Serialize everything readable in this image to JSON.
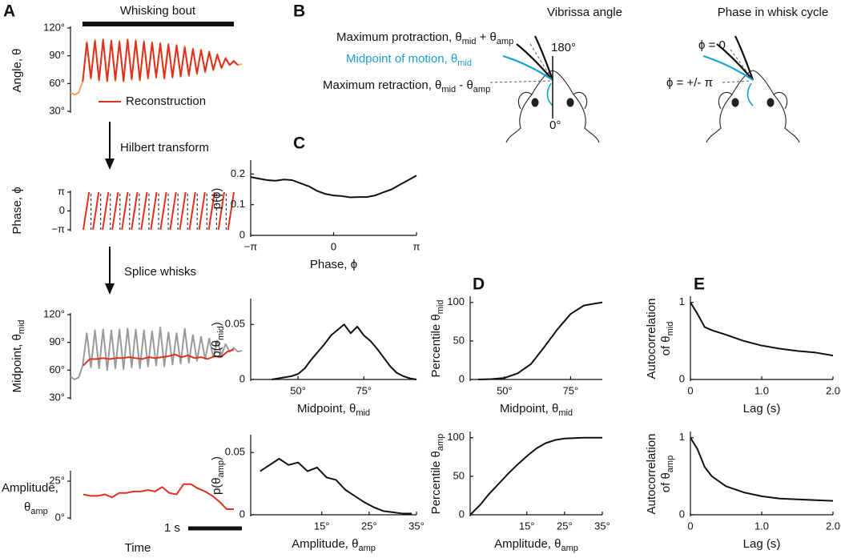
{
  "panel_labels": [
    "A",
    "B",
    "C",
    "D",
    "E"
  ],
  "annotations": {
    "whisking_bout": "Whisking bout",
    "hilbert_transform": "Hilbert transform",
    "splice_whisks": "Splice whisks",
    "scale_bar": "1 s",
    "time_label": "Time"
  },
  "diagram": {
    "title_left": "Vibrissa angle",
    "title_right": "Phase in whisk cycle",
    "max_protraction": [
      "Maximum protraction, θ",
      "mid",
      " + θ",
      "amp"
    ],
    "midpoint": [
      "Midpoint of motion, θ",
      "mid"
    ],
    "max_retraction": [
      "Maximum retraction, θ",
      "mid",
      " - θ",
      "amp"
    ],
    "angle_top": "180°",
    "angle_bottom": "0°",
    "phase_zero": "ϕ = 0",
    "phase_pi": "ϕ = +/- π",
    "midpoint_color": "#1a9fd6"
  },
  "chart_data": [
    {
      "type": "line",
      "ylabel": [
        [
          "Angle, θ"
        ]
      ],
      "ylim": [
        30,
        120
      ],
      "yticks": [
        {
          "value": 120,
          "label": "120°"
        },
        {
          "value": 90,
          "label": "90°"
        },
        {
          "value": 60,
          "label": "60°"
        },
        {
          "value": 30,
          "label": "30°"
        }
      ],
      "legend": "lower center",
      "series": [
        {
          "color": "#f0a35e",
          "values": [
            50,
            48,
            50,
            62,
            105,
            65,
            107,
            63,
            108,
            62,
            107,
            63,
            106,
            62,
            108,
            64,
            107,
            63,
            106,
            65,
            105,
            66,
            104,
            65,
            103,
            66,
            102,
            67,
            100,
            68,
            98,
            70,
            97,
            72,
            95,
            74,
            92,
            76,
            88,
            80,
            85,
            80,
            81
          ]
        },
        {
          "name": "Reconstruction",
          "color": "#e0301e",
          "values": [
            null,
            null,
            null,
            62,
            104,
            66,
            106,
            64,
            107,
            63,
            106,
            64,
            105,
            63,
            107,
            65,
            106,
            64,
            105,
            66,
            104,
            67,
            103,
            66,
            102,
            67,
            101,
            68,
            99,
            69,
            97,
            71,
            96,
            73,
            94,
            75,
            91,
            77,
            87,
            80,
            84,
            80,
            null
          ]
        }
      ]
    },
    {
      "type": "line",
      "ylabel": [
        [
          "Phase, ϕ"
        ]
      ],
      "ylim": [
        -3.1416,
        3.1416
      ],
      "yticks": [
        {
          "value": 3.1416,
          "label": "π"
        },
        0,
        {
          "value": -3.1416,
          "label": "−π"
        }
      ],
      "series": [
        {
          "color": "#e0301e",
          "values": [
            -3.1416,
            -1.0472,
            1.0472,
            3.1416,
            null,
            -3.1416,
            -1.0472,
            1.0472,
            3.1416,
            null,
            -3.1416,
            -1.0472,
            1.0472,
            3.1416,
            null,
            -3.1416,
            -1.0472,
            1.0472,
            3.1416,
            null,
            -3.1416,
            -1.0472,
            1.0472,
            3.1416,
            null,
            -3.1416,
            -1.0472,
            1.0472,
            3.1416,
            null,
            -3.1416,
            -1.0472,
            1.0472,
            3.1416,
            null,
            -3.1416,
            -1.0472,
            1.0472,
            3.1416,
            null,
            -3.1416,
            -1.0472,
            1.0472,
            3.1416,
            null,
            -3.1416,
            -1.0472,
            1.0472,
            3.1416,
            null,
            -3.1416,
            -1.0472,
            1.0472,
            3.1416,
            null,
            -3.1416,
            -1.0472,
            1.0472,
            3.1416,
            null,
            -3.1416,
            -1.0472,
            1.0472,
            3.1416,
            null,
            -3.1416,
            -1.0472,
            1.0472,
            3.1416,
            null,
            -3.1416,
            -1.0472,
            1.0472,
            3.1416,
            null,
            -3.1416,
            -1.0472,
            1.0472,
            3.1416
          ]
        }
      ]
    },
    {
      "type": "line",
      "ylabel": [
        [
          "Midpoint, θ",
          "mid"
        ]
      ],
      "ylim": [
        30,
        120
      ],
      "yticks": [
        {
          "value": 120,
          "label": "120°"
        },
        {
          "value": 90,
          "label": "90°"
        },
        {
          "value": 60,
          "label": "60°"
        },
        {
          "value": 30,
          "label": "30°"
        }
      ],
      "series": [
        {
          "color": "#9a9a9a",
          "values": [
            53,
            50,
            52,
            65,
            100,
            63,
            103,
            62,
            104,
            60,
            103,
            62,
            104,
            61,
            105,
            63,
            104,
            62,
            103,
            64,
            102,
            65,
            106,
            64,
            101,
            66,
            100,
            67,
            105,
            68,
            98,
            70,
            96,
            72,
            94,
            74,
            92,
            76,
            88,
            80,
            84,
            80,
            81
          ]
        },
        {
          "color": "#e0301e",
          "values": [
            65,
            72,
            72,
            73,
            72,
            73,
            73,
            74,
            73,
            72,
            74,
            73,
            74,
            75,
            77,
            74,
            76,
            73,
            74,
            72,
            75,
            74,
            80,
            82
          ]
        }
      ]
    },
    {
      "type": "line",
      "ylabel": [
        [
          "Amplitude,"
        ],
        [
          "θ",
          "amp"
        ]
      ],
      "ylim": [
        0,
        31
      ],
      "yticks": [
        {
          "value": 25,
          "label": "25°"
        },
        {
          "value": 0,
          "label": "0°"
        }
      ],
      "series": [
        {
          "color": "#e0301e",
          "values": [
            16,
            15,
            15,
            16,
            14,
            17,
            17,
            18,
            18,
            19,
            18,
            21,
            17,
            16,
            23,
            23,
            20,
            18,
            15,
            11,
            6,
            6
          ]
        }
      ]
    },
    {
      "type": "line",
      "ylabel": [
        [
          "p(ϕ)"
        ]
      ],
      "xlabel": [
        "Phase, ϕ"
      ],
      "xlim": [
        -3.1416,
        3.1416
      ],
      "ylim": [
        0,
        0.24
      ],
      "xticks": [
        {
          "value": -3.1416,
          "label": "−π"
        },
        0,
        {
          "value": 3.1416,
          "label": "π"
        }
      ],
      "yticks": [
        0.2,
        0.1,
        0
      ],
      "x": [
        -3.14,
        -2.83,
        -2.51,
        -2.2,
        -1.88,
        -1.57,
        -1.26,
        -0.94,
        -0.63,
        -0.31,
        0,
        0.31,
        0.63,
        0.94,
        1.26,
        1.57,
        1.88,
        2.2,
        2.51,
        2.83,
        3.14
      ],
      "series": [
        {
          "color": "#111111",
          "values": [
            0.19,
            0.185,
            0.18,
            0.178,
            0.182,
            0.18,
            0.17,
            0.16,
            0.145,
            0.135,
            0.13,
            0.128,
            0.124,
            0.125,
            0.125,
            0.13,
            0.14,
            0.15,
            0.165,
            0.18,
            0.195
          ]
        }
      ]
    },
    {
      "type": "line",
      "ylabel": [
        [
          "p(θ",
          "mid",
          ")"
        ]
      ],
      "xlabel": [
        "Midpoint, θ",
        "mid"
      ],
      "xlim": [
        32,
        95
      ],
      "ylim": [
        0,
        0.072
      ],
      "xticks": [
        {
          "value": 50,
          "label": "50°"
        },
        {
          "value": 75,
          "label": "75°"
        }
      ],
      "yticks": [
        0.05,
        0
      ],
      "x": [
        40,
        42.5,
        45,
        47.5,
        50,
        52.5,
        55,
        57.5,
        60,
        62.5,
        65,
        67.5,
        70,
        72.5,
        75,
        77.5,
        80,
        82.5,
        85,
        87.5,
        90,
        92.5,
        95
      ],
      "series": [
        {
          "color": "#111111",
          "values": [
            0,
            0.001,
            0.002,
            0.003,
            0.005,
            0.01,
            0.018,
            0.025,
            0.032,
            0.04,
            0.045,
            0.05,
            0.042,
            0.048,
            0.04,
            0.035,
            0.028,
            0.02,
            0.012,
            0.006,
            0.003,
            0.001,
            0
          ]
        }
      ]
    },
    {
      "type": "line",
      "ylabel": [
        [
          "p(θ",
          "amp",
          ")"
        ]
      ],
      "xlabel": [
        "Amplitude, θ",
        "amp"
      ],
      "xlim": [
        0,
        35
      ],
      "ylim": [
        0,
        0.063
      ],
      "xticks": [
        {
          "value": 15,
          "label": "15°"
        },
        {
          "value": 25,
          "label": "25°"
        },
        {
          "value": 35,
          "label": "35°"
        }
      ],
      "yticks": [
        0.05,
        0
      ],
      "x": [
        2,
        4,
        6,
        8,
        10,
        12,
        14,
        16,
        18,
        20,
        22,
        24,
        26,
        28,
        30,
        32,
        34
      ],
      "series": [
        {
          "color": "#111111",
          "values": [
            0.035,
            0.04,
            0.045,
            0.04,
            0.042,
            0.035,
            0.038,
            0.03,
            0.028,
            0.02,
            0.015,
            0.01,
            0.006,
            0.003,
            0.002,
            0.001,
            0.001
          ]
        }
      ]
    },
    {
      "type": "line",
      "ylabel": [
        [
          "Percentile θ",
          "mid"
        ]
      ],
      "xlabel": [
        "Midpoint, θ",
        "mid"
      ],
      "xlim": [
        37,
        87
      ],
      "ylim": [
        0,
        106
      ],
      "xticks": [
        {
          "value": 50,
          "label": "50°"
        },
        {
          "value": 75,
          "label": "75°"
        }
      ],
      "yticks": [
        100,
        50,
        0
      ],
      "x": [
        40,
        45,
        50,
        55,
        60,
        65,
        70,
        75,
        80,
        85,
        87
      ],
      "series": [
        {
          "color": "#111111",
          "values": [
            0,
            0.5,
            2,
            8,
            20,
            42,
            65,
            85,
            96,
            99,
            100
          ]
        }
      ]
    },
    {
      "type": "line",
      "ylabel": [
        [
          "Percentile θ",
          "amp"
        ]
      ],
      "xlabel": [
        "Amplitude, θ",
        "amp"
      ],
      "xlim": [
        0,
        35
      ],
      "ylim": [
        0,
        106
      ],
      "xticks": [
        {
          "value": 15,
          "label": "15°"
        },
        {
          "value": 25,
          "label": "25°"
        },
        {
          "value": 35,
          "label": "35°"
        }
      ],
      "yticks": [
        100,
        50,
        0
      ],
      "x": [
        0,
        2.5,
        5,
        7.5,
        10,
        12.5,
        15,
        17.5,
        20,
        22.5,
        25,
        30,
        35
      ],
      "series": [
        {
          "color": "#111111",
          "values": [
            0,
            12,
            27,
            40,
            53,
            65,
            76,
            86,
            93,
            97,
            99,
            100,
            100
          ]
        }
      ]
    },
    {
      "type": "line",
      "ylabel": [
        [
          "Autocorrelation"
        ],
        [
          "of θ",
          "mid"
        ]
      ],
      "xlabel": [
        "Lag (s)"
      ],
      "xlim": [
        0,
        2
      ],
      "ylim": [
        0,
        1.06
      ],
      "xticks": [
        0,
        {
          "value": 1,
          "label": "1.0"
        },
        {
          "value": 2,
          "label": "2.0"
        }
      ],
      "yticks": [
        1,
        0
      ],
      "x": [
        0,
        0.1,
        0.2,
        0.3,
        0.5,
        0.75,
        1.0,
        1.25,
        1.5,
        1.75,
        2.0
      ],
      "series": [
        {
          "color": "#111111",
          "values": [
            1,
            0.85,
            0.68,
            0.64,
            0.58,
            0.5,
            0.44,
            0.4,
            0.37,
            0.35,
            0.31
          ]
        }
      ]
    },
    {
      "type": "line",
      "ylabel": [
        [
          "Autocorrelation"
        ],
        [
          "of θ",
          "amp"
        ]
      ],
      "xlabel": [
        "Lag (s)"
      ],
      "xlim": [
        0,
        2
      ],
      "ylim": [
        0,
        1.06
      ],
      "xticks": [
        0,
        {
          "value": 1,
          "label": "1.0"
        },
        {
          "value": 2,
          "label": "2.0"
        }
      ],
      "yticks": [
        1,
        0
      ],
      "x": [
        0,
        0.1,
        0.2,
        0.3,
        0.5,
        0.75,
        1.0,
        1.25,
        1.5,
        1.75,
        2.0
      ],
      "series": [
        {
          "color": "#111111",
          "values": [
            1,
            0.85,
            0.62,
            0.5,
            0.37,
            0.29,
            0.24,
            0.21,
            0.2,
            0.19,
            0.18
          ]
        }
      ]
    }
  ]
}
